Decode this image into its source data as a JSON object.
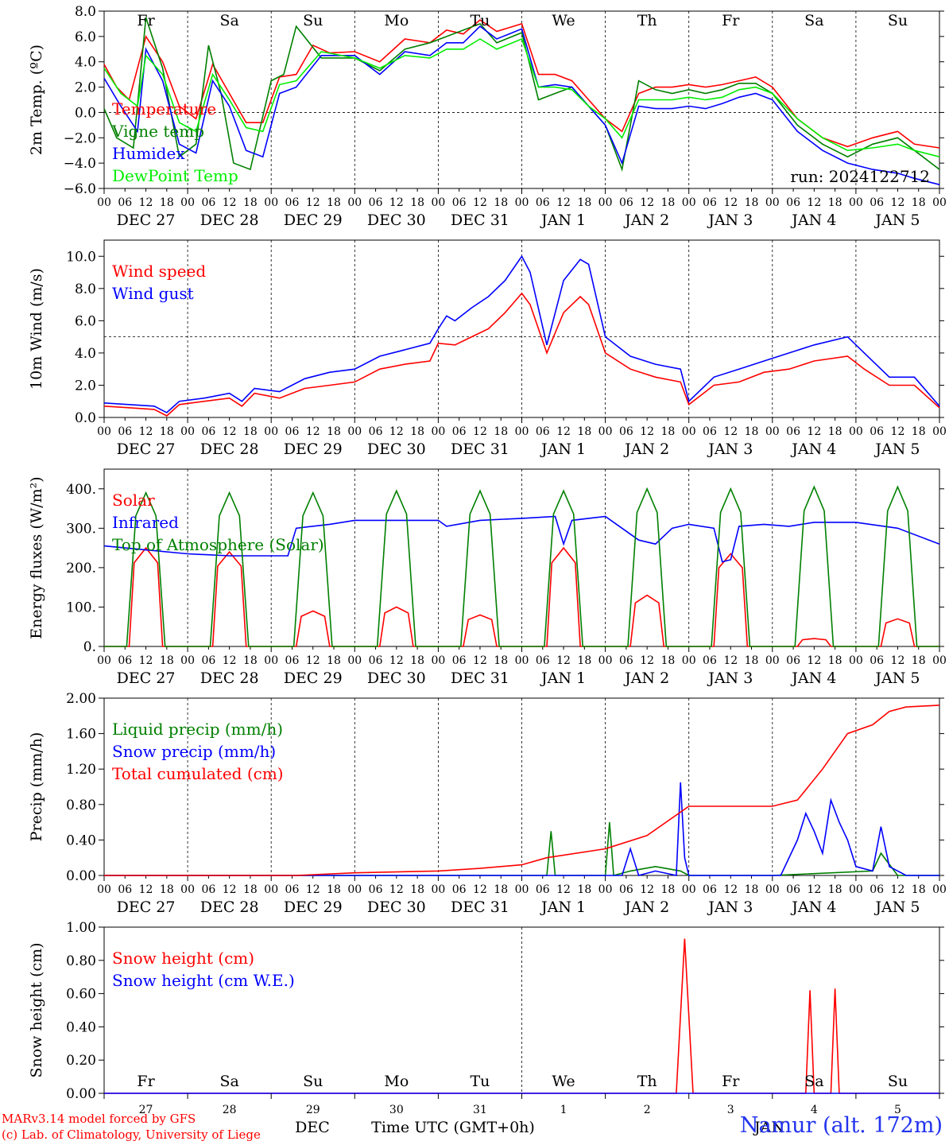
{
  "chart_data": [
    {
      "type": "line",
      "ylabel": "2m Temp. (ºC)",
      "ylim": [
        -6,
        8
      ],
      "yticks": [
        "8.0",
        "6.0",
        "4.0",
        "2.0",
        "0.0",
        "−2.0",
        "−4.0",
        "−6.0"
      ],
      "ref_line": 0,
      "day_labels": [
        "Fr",
        "Sa",
        "Su",
        "Mo",
        "Tu",
        "We",
        "Th",
        "Fr",
        "Sa",
        "Su"
      ],
      "weekend_color": "#ff0000",
      "run_label": "run: 2024122712",
      "legend": [
        "Temperature",
        "Vigne temp",
        "Humidex",
        "DewPoint Temp"
      ],
      "series": [
        {
          "name": "Temperature",
          "color": "#ff0000",
          "x": [
            0,
            0.15,
            0.3,
            0.5,
            0.7,
            0.9,
            1.1,
            1.3,
            1.5,
            1.7,
            1.9,
            2.1,
            2.3,
            2.5,
            2.7,
            3.0,
            3.3,
            3.6,
            3.9,
            4.1,
            4.3,
            4.5,
            4.7,
            5.0,
            5.2,
            5.4,
            5.6,
            5.8,
            6.0,
            6.2,
            6.4,
            6.6,
            6.8,
            7.0,
            7.2,
            7.4,
            7.6,
            7.8,
            8.0,
            8.3,
            8.6,
            8.9,
            9.2,
            9.5,
            9.7,
            10.0
          ],
          "y": [
            3.8,
            2.0,
            1.0,
            6.0,
            4.0,
            0.5,
            -0.5,
            3.8,
            1.5,
            -0.8,
            -0.8,
            2.8,
            3.0,
            5.3,
            4.7,
            4.8,
            4.0,
            5.8,
            5.5,
            6.5,
            6.2,
            7.3,
            6.4,
            7.0,
            3.0,
            3.0,
            2.5,
            1.0,
            -0.5,
            -1.5,
            1.5,
            2.0,
            2.0,
            2.2,
            2.0,
            2.2,
            2.5,
            2.8,
            2.0,
            -0.5,
            -2.0,
            -2.7,
            -2.0,
            -1.5,
            -2.5,
            -2.8
          ]
        },
        {
          "name": "Vigne temp",
          "color": "#008000",
          "x": [
            0,
            0.15,
            0.35,
            0.5,
            0.7,
            0.9,
            1.1,
            1.25,
            1.4,
            1.55,
            1.75,
            2.0,
            2.15,
            2.3,
            2.6,
            3.0,
            3.3,
            3.6,
            3.9,
            4.1,
            4.3,
            4.5,
            4.7,
            5.0,
            5.2,
            5.4,
            5.6,
            5.8,
            6.0,
            6.2,
            6.4,
            6.6,
            6.8,
            7.0,
            7.2,
            7.4,
            7.6,
            7.8,
            8.0,
            8.3,
            8.6,
            8.9,
            9.2,
            9.5,
            9.7,
            10.0
          ],
          "y": [
            0.3,
            -2.0,
            -2.8,
            7.5,
            3.5,
            -3.5,
            -2.5,
            5.3,
            1.5,
            -4.0,
            -4.5,
            2.5,
            3.0,
            6.8,
            4.3,
            4.3,
            3.3,
            5.0,
            5.5,
            6.0,
            6.5,
            7.0,
            5.5,
            6.3,
            1.0,
            1.5,
            2.0,
            0.5,
            -1.0,
            -4.5,
            2.5,
            1.8,
            1.5,
            1.8,
            1.5,
            1.8,
            2.3,
            2.3,
            1.5,
            -1.0,
            -2.5,
            -3.5,
            -2.5,
            -2.0,
            -3.0,
            -4.5
          ]
        },
        {
          "name": "Humidex",
          "color": "#0000ff",
          "x": [
            0,
            0.2,
            0.4,
            0.5,
            0.7,
            0.9,
            1.1,
            1.3,
            1.5,
            1.7,
            1.9,
            2.1,
            2.3,
            2.6,
            3.0,
            3.3,
            3.6,
            3.9,
            4.1,
            4.3,
            4.5,
            4.7,
            5.0,
            5.2,
            5.4,
            5.6,
            5.8,
            6.0,
            6.2,
            6.4,
            6.6,
            6.8,
            7.0,
            7.2,
            7.4,
            7.6,
            7.8,
            8.0,
            8.3,
            8.6,
            8.9,
            9.2,
            9.5,
            9.7,
            10.0
          ],
          "y": [
            2.7,
            0.5,
            -1.5,
            5.0,
            2.5,
            -2.5,
            -3.2,
            2.5,
            0.5,
            -3.0,
            -3.5,
            1.5,
            2.0,
            4.5,
            4.5,
            3.0,
            4.8,
            4.5,
            5.5,
            5.5,
            6.8,
            5.8,
            6.6,
            2.0,
            2.2,
            2.0,
            0.5,
            -1.0,
            -4.0,
            0.5,
            0.3,
            0.3,
            0.5,
            0.3,
            0.7,
            1.2,
            1.5,
            1.0,
            -1.5,
            -3.0,
            -4.0,
            -4.5,
            -4.8,
            -5.2,
            -5.7
          ]
        },
        {
          "name": "DewPoint Temp",
          "color": "#00ee00",
          "x": [
            0,
            0.2,
            0.4,
            0.5,
            0.7,
            0.9,
            1.1,
            1.3,
            1.5,
            1.7,
            1.9,
            2.1,
            2.3,
            2.6,
            3.0,
            3.3,
            3.6,
            3.9,
            4.1,
            4.3,
            4.5,
            4.7,
            5.0,
            5.2,
            5.4,
            5.6,
            5.8,
            6.0,
            6.2,
            6.4,
            6.6,
            6.8,
            7.0,
            7.2,
            7.4,
            7.6,
            7.8,
            8.0,
            8.3,
            8.6,
            8.9,
            9.2,
            9.5,
            9.7,
            10.0
          ],
          "y": [
            3.5,
            1.5,
            0.5,
            4.5,
            3.0,
            -0.8,
            -1.5,
            3.0,
            1.0,
            -1.2,
            -1.5,
            2.2,
            2.5,
            4.8,
            4.3,
            3.5,
            4.5,
            4.3,
            5.0,
            5.0,
            5.8,
            5.0,
            5.8,
            2.0,
            2.0,
            1.8,
            0.5,
            -0.5,
            -2.0,
            1.0,
            1.0,
            1.0,
            1.2,
            1.0,
            1.2,
            1.8,
            2.0,
            1.5,
            -0.5,
            -2.0,
            -3.0,
            -2.8,
            -2.5,
            -3.0,
            -3.5
          ]
        }
      ]
    },
    {
      "type": "line",
      "ylabel": "10m Wind (m/s)",
      "ylim": [
        0,
        11
      ],
      "yticks": [
        "10.0",
        "8.0",
        "6.0",
        "4.0",
        "2.0",
        "0.0"
      ],
      "ref_line": 5,
      "legend": [
        "Wind speed",
        "Wind gust"
      ],
      "series": [
        {
          "name": "Wind speed",
          "color": "#ff0000",
          "x": [
            0,
            0.3,
            0.6,
            0.75,
            0.9,
            1.2,
            1.5,
            1.65,
            1.8,
            2.1,
            2.4,
            2.7,
            3.0,
            3.3,
            3.6,
            3.9,
            4.0,
            4.2,
            4.4,
            4.6,
            4.8,
            5.0,
            5.1,
            5.3,
            5.5,
            5.7,
            5.8,
            6.0,
            6.3,
            6.6,
            6.9,
            7.0,
            7.3,
            7.6,
            7.9,
            8.2,
            8.5,
            8.9,
            9.1,
            9.4,
            9.7,
            10.0
          ],
          "y": [
            0.7,
            0.6,
            0.5,
            0.1,
            0.8,
            1.0,
            1.2,
            0.7,
            1.5,
            1.2,
            1.8,
            2.0,
            2.2,
            3.0,
            3.3,
            3.5,
            4.6,
            4.5,
            5.0,
            5.5,
            6.5,
            7.7,
            7.0,
            4.0,
            6.5,
            7.5,
            7.0,
            4.0,
            3.0,
            2.5,
            2.2,
            0.8,
            2.0,
            2.2,
            2.8,
            3.0,
            3.5,
            3.8,
            3.0,
            2.0,
            2.0,
            0.6
          ]
        },
        {
          "name": "Wind gust",
          "color": "#0000ff",
          "x": [
            0,
            0.3,
            0.6,
            0.75,
            0.9,
            1.2,
            1.5,
            1.65,
            1.8,
            2.1,
            2.4,
            2.7,
            3.0,
            3.3,
            3.6,
            3.9,
            4.0,
            4.1,
            4.2,
            4.4,
            4.6,
            4.8,
            5.0,
            5.1,
            5.3,
            5.5,
            5.7,
            5.8,
            6.0,
            6.3,
            6.6,
            6.9,
            7.0,
            7.3,
            7.6,
            7.9,
            8.2,
            8.5,
            8.9,
            9.1,
            9.4,
            9.7,
            10.0
          ],
          "y": [
            0.9,
            0.8,
            0.7,
            0.3,
            1.0,
            1.2,
            1.5,
            1.0,
            1.8,
            1.6,
            2.4,
            2.8,
            3.0,
            3.8,
            4.2,
            4.6,
            5.5,
            6.3,
            6.0,
            6.8,
            7.5,
            8.5,
            10.0,
            9.0,
            4.5,
            8.5,
            9.8,
            9.5,
            5.0,
            3.8,
            3.3,
            3.0,
            1.0,
            2.5,
            3.0,
            3.5,
            4.0,
            4.5,
            5.0,
            4.0,
            2.5,
            2.5,
            0.7
          ]
        }
      ]
    },
    {
      "type": "line",
      "ylabel": "Energy fluxes (W/m²)",
      "ylim": [
        0,
        450
      ],
      "yticks": [
        "400.",
        "300.",
        "200.",
        "100.",
        "0."
      ],
      "legend": [
        "Solar",
        "Infrared",
        "Top of Atmosphere (Solar)"
      ],
      "series": [
        {
          "name": "Solar",
          "color": "#ff0000",
          "peaks": [
            250,
            240,
            90,
            100,
            80,
            250,
            130,
            235,
            20,
            70
          ]
        },
        {
          "name": "Infrared",
          "color": "#0000ff",
          "x": [
            0,
            0.5,
            1.0,
            1.5,
            2.2,
            2.3,
            2.7,
            3.0,
            3.5,
            4.0,
            4.1,
            4.5,
            5.0,
            5.4,
            5.5,
            5.6,
            6.0,
            6.2,
            6.4,
            6.6,
            6.8,
            7.0,
            7.3,
            7.4,
            7.5,
            7.6,
            7.9,
            8.2,
            8.5,
            9.0,
            9.5,
            10.0
          ],
          "y": [
            255,
            245,
            235,
            230,
            230,
            300,
            310,
            320,
            320,
            320,
            305,
            320,
            325,
            330,
            260,
            320,
            330,
            300,
            270,
            260,
            300,
            310,
            300,
            215,
            220,
            305,
            310,
            305,
            315,
            315,
            300,
            260
          ]
        },
        {
          "name": "Top of Atmosphere (Solar)",
          "color": "#008000",
          "peaks": [
            390,
            390,
            390,
            395,
            395,
            395,
            400,
            400,
            405,
            405
          ]
        }
      ]
    },
    {
      "type": "line",
      "ylabel": "Precip (mm/h)",
      "ylim": [
        0,
        2
      ],
      "yticks": [
        "2.00",
        "1.60",
        "1.20",
        "0.80",
        "0.40",
        "0.00"
      ],
      "legend": [
        "Liquid precip (mm/h)",
        "Snow precip (mm/h)",
        "Total cumulated (cm)"
      ],
      "series": [
        {
          "name": "Liquid precip (mm/h)",
          "color": "#008000",
          "x": [
            0,
            2.0,
            5.3,
            5.35,
            5.4,
            5.5,
            6.0,
            6.05,
            6.1,
            6.3,
            6.6,
            6.9,
            7.0,
            8.0,
            9.2,
            9.3,
            9.5,
            10.0
          ],
          "y": [
            0,
            0,
            0,
            0.5,
            0,
            0,
            0,
            0.6,
            0,
            0.05,
            0.1,
            0.05,
            0,
            0,
            0.05,
            0.25,
            0,
            0
          ]
        },
        {
          "name": "Snow precip (mm/h)",
          "color": "#0000ff",
          "x": [
            0,
            6.2,
            6.3,
            6.4,
            6.6,
            6.85,
            6.9,
            6.95,
            7.0,
            8.1,
            8.3,
            8.4,
            8.5,
            8.6,
            8.7,
            8.8,
            8.9,
            9.0,
            9.2,
            9.3,
            9.4,
            9.6,
            10.0
          ],
          "y": [
            0,
            0,
            0.3,
            0,
            0.05,
            0,
            1.05,
            0.2,
            0,
            0,
            0.4,
            0.7,
            0.5,
            0.25,
            0.85,
            0.6,
            0.4,
            0.1,
            0.05,
            0.55,
            0.1,
            0,
            0
          ]
        },
        {
          "name": "Total cumulated (cm)",
          "color": "#ff0000",
          "x": [
            0,
            2.3,
            3.0,
            4.0,
            4.5,
            5.0,
            5.3,
            6.0,
            6.5,
            7.0,
            8.0,
            8.3,
            8.6,
            8.9,
            9.2,
            9.4,
            9.6,
            10.0
          ],
          "y": [
            0,
            0,
            0.03,
            0.05,
            0.08,
            0.12,
            0.2,
            0.3,
            0.45,
            0.78,
            0.78,
            0.85,
            1.2,
            1.6,
            1.7,
            1.85,
            1.9,
            1.92
          ]
        }
      ]
    },
    {
      "type": "line",
      "ylabel": "Snow height (cm)",
      "ylim": [
        0,
        1
      ],
      "yticks": [
        "1.00",
        "0.80",
        "0.60",
        "0.40",
        "0.20",
        "0.00"
      ],
      "legend": [
        "Snow height (cm)",
        "Snow height (cm W.E.)"
      ],
      "bottom_day_labels": [
        "Fr",
        "Sa",
        "Su",
        "Mo",
        "Tu",
        "We",
        "Th",
        "Fr",
        "Sa",
        "Su"
      ],
      "bottom_day_numbers": [
        "27",
        "28",
        "29",
        "30",
        "31",
        "1",
        "2",
        "3",
        "4",
        "5"
      ],
      "bottom_month_left": "DEC",
      "bottom_month_right": "JAN",
      "xlabel": "Time UTC (GMT+0h)",
      "series": [
        {
          "name": "Snow height (cm)",
          "color": "#ff0000",
          "x": [
            0,
            6.85,
            6.95,
            7.05,
            8.0,
            8.4,
            8.45,
            8.5,
            8.7,
            8.75,
            8.8,
            10.0
          ],
          "y": [
            0,
            0,
            0.93,
            0,
            0,
            0,
            0.62,
            0,
            0,
            0.63,
            0,
            0
          ]
        },
        {
          "name": "Snow height (cm W.E.)",
          "color": "#0000ff",
          "x": [
            0,
            10.0
          ],
          "y": [
            0,
            0
          ]
        }
      ]
    }
  ],
  "axis": {
    "hour_ticks": [
      "00",
      "06",
      "12",
      "18"
    ],
    "date_labels": [
      "DEC 27",
      "DEC 28",
      "DEC 29",
      "DEC 30",
      "DEC 31",
      "JAN  1",
      "JAN  2",
      "JAN  3",
      "JAN  4",
      "JAN  5"
    ]
  },
  "footer": {
    "model_line": "MARv3.14 model forced by GFS",
    "lab_line": "(c) Lab. of Climatology, University of Liege",
    "station": "Namur (alt. 172m)"
  }
}
